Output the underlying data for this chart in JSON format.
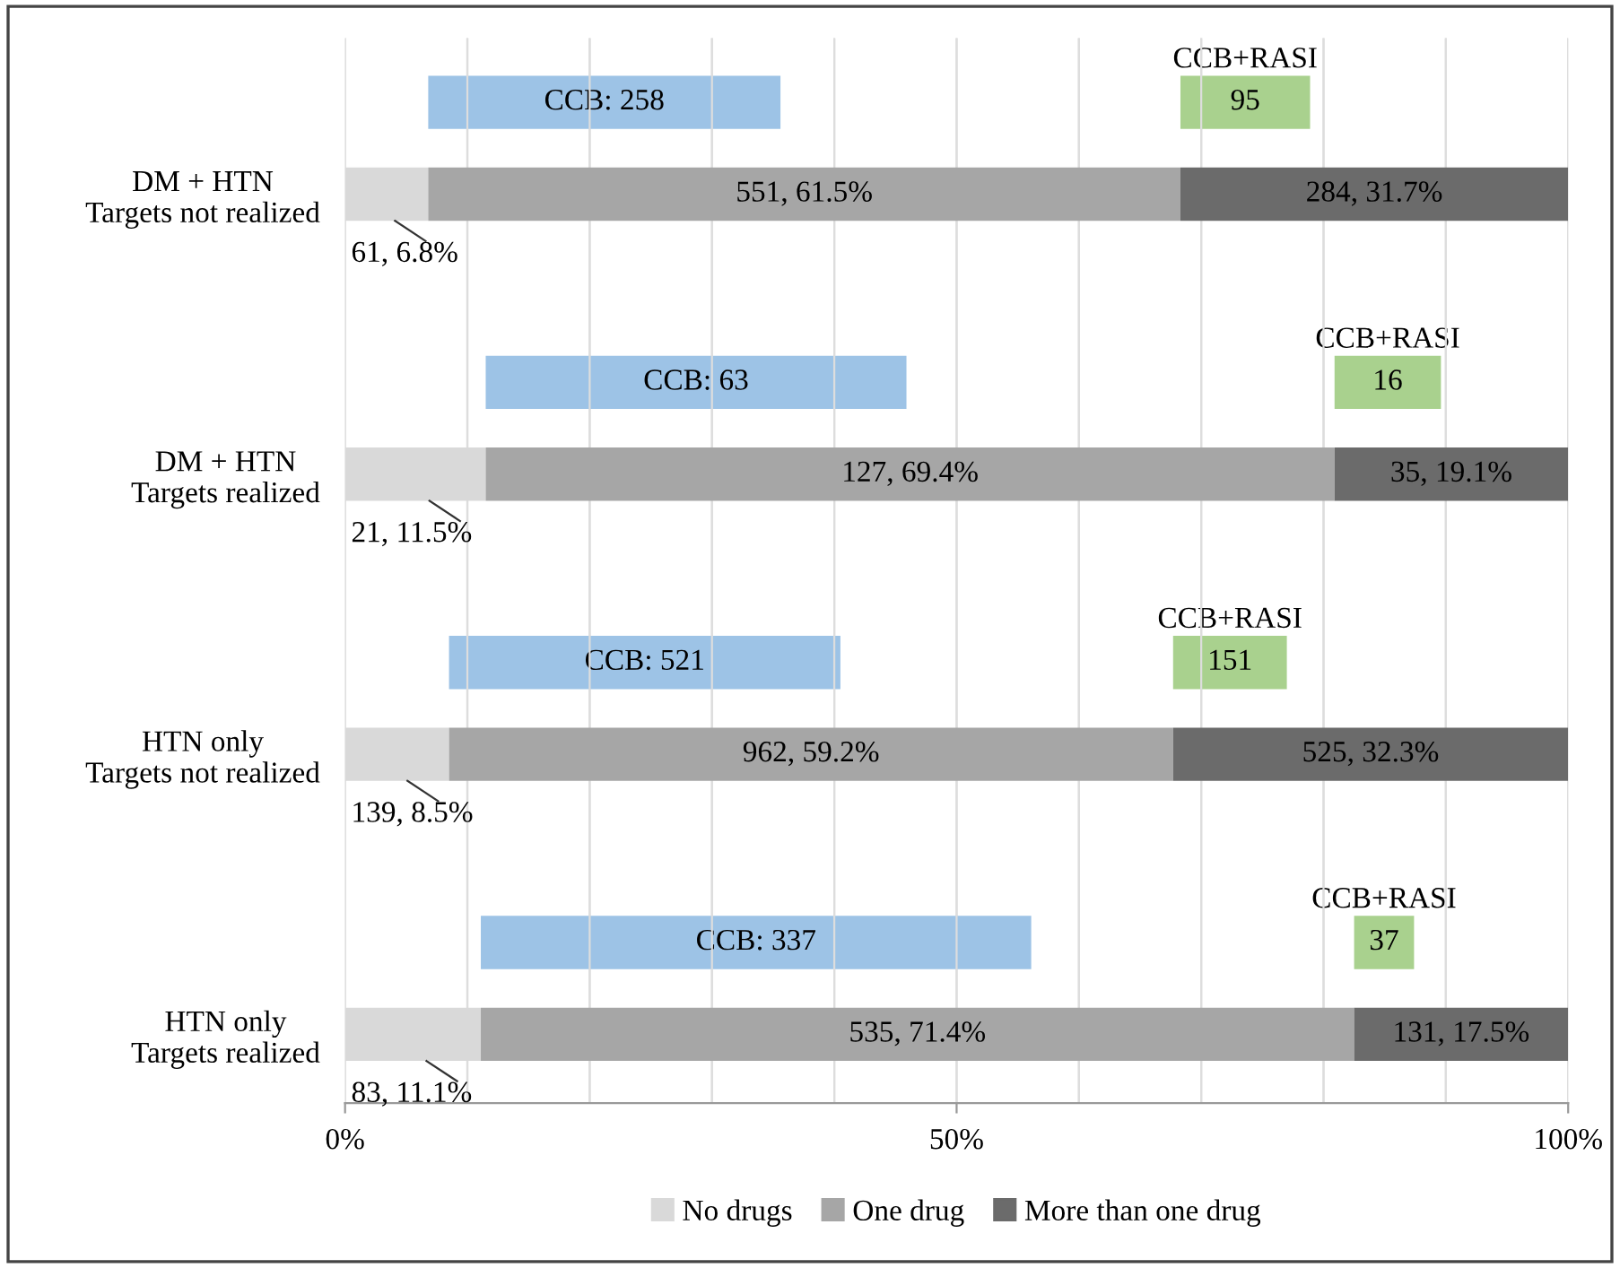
{
  "chart_data": [
    {
      "type": "bar",
      "orientation": "horizontal",
      "categories": [
        null,
        null,
        null,
        null
      ],
      "tick_labels": false,
      "xlim": [
        0,
        100
      ],
      "xticks": [
        0,
        10,
        20,
        30,
        40,
        50,
        60,
        70,
        80,
        90,
        100
      ],
      "grid": "x",
      "series": [
        {
          "color": "#9dc3e6",
          "base": [
            6.8,
            11.5,
            8.5,
            11.1
          ],
          "values": [
            28.8,
            34.4,
            32.0,
            45.0
          ]
        },
        {
          "name": "CCB+RASI",
          "color": "#a9d18e",
          "base": [
            68.3,
            80.9,
            67.7,
            82.5
          ],
          "values": [
            10.6,
            8.7,
            9.3,
            4.9
          ]
        }
      ],
      "annotations": [
        "CCB: 258",
        "CCB: 63",
        "CCB: 521",
        "CCB: 337",
        "95",
        "16",
        "151",
        "37"
      ]
    },
    {
      "type": "bar",
      "orientation": "horizontal",
      "stacked": true,
      "categories": [
        "DM + HTN\nTargets not realized",
        "DM + HTN\nTargets realized",
        "HTN only\nTargets not realized",
        "HTN only\nTargets realized"
      ],
      "xlim": [
        0,
        100
      ],
      "xticks": [
        {
          "value": 0,
          "label": "0%"
        },
        {
          "value": 10,
          "label": null
        },
        {
          "value": 20,
          "label": null
        },
        {
          "value": 30,
          "label": null
        },
        {
          "value": 40,
          "label": null
        },
        {
          "value": 50,
          "label": "50%"
        },
        {
          "value": 60,
          "label": null
        },
        {
          "value": 70,
          "label": null
        },
        {
          "value": 80,
          "label": null
        },
        {
          "value": 90,
          "label": null
        },
        {
          "value": 100,
          "label": "100%"
        }
      ],
      "grid": "x",
      "legend": "bottom",
      "series": [
        {
          "name": "No drugs",
          "color": "#d9d9d9",
          "values": [
            6.8,
            11.5,
            8.5,
            11.1
          ],
          "value_labels": [
            "61, 6.8%",
            "21, 11.5%",
            "139, 8.5%",
            "83, 11.1%"
          ]
        },
        {
          "name": "One drug",
          "color": "#a6a6a6",
          "values": [
            61.5,
            69.4,
            59.2,
            71.4
          ],
          "value_labels": [
            "551, 61.5%",
            "127, 69.4%",
            "962, 59.2%",
            "535, 71.4%"
          ]
        },
        {
          "name": "More than one drug",
          "color": "#6b6b6b",
          "values": [
            31.7,
            19.1,
            32.3,
            17.5
          ],
          "value_labels": [
            "284, 31.7%",
            "35, 19.1%",
            "525, 32.3%",
            "131, 17.5%"
          ]
        }
      ]
    }
  ]
}
